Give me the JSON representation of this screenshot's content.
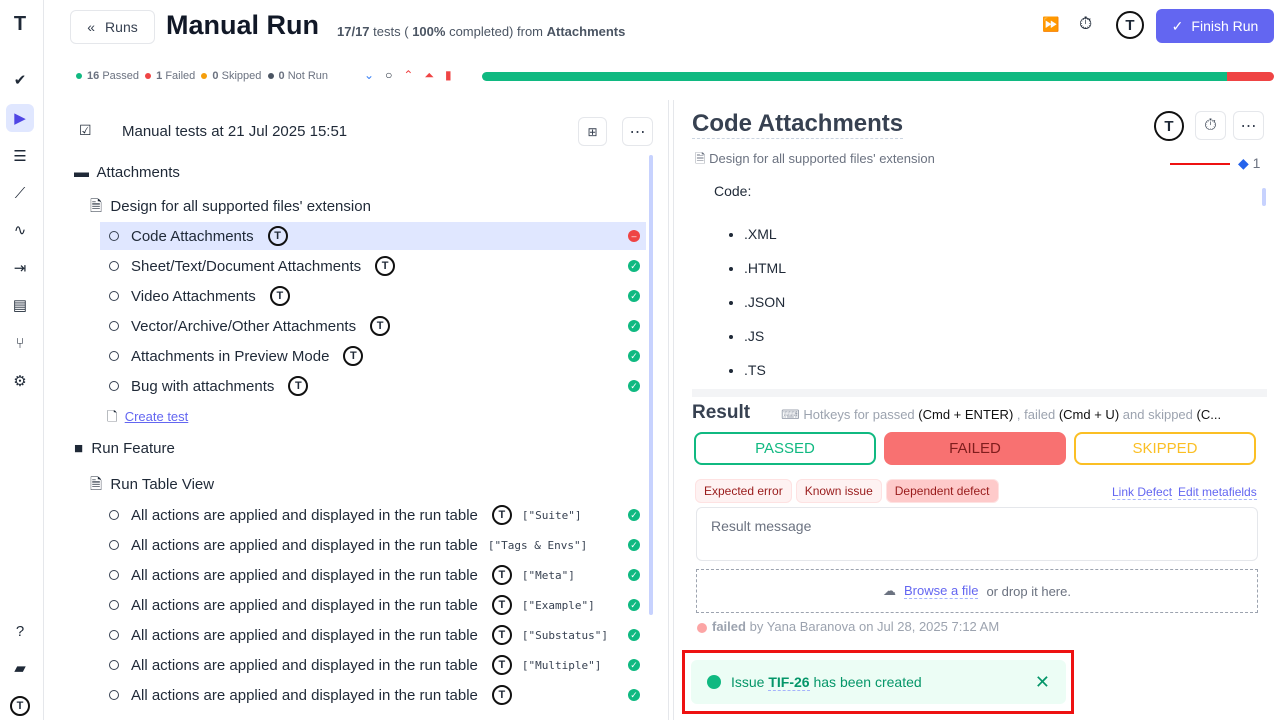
{
  "header": {
    "back_label": "Runs",
    "title": "Manual Run",
    "count": "17/17",
    "tests_word": "tests (",
    "percent": "100%",
    "completed_from": "completed) from",
    "source": "Attachments",
    "finish_label": "Finish Run"
  },
  "stats": {
    "passed": "16",
    "passed_label": "Passed",
    "failed": "1",
    "failed_label": "Failed",
    "skipped": "0",
    "skipped_label": "Skipped",
    "notrun": "0",
    "notrun_label": "Not Run",
    "progress_passed_fraction": 0.9412,
    "progress_failed_fraction": 0.0588,
    "colors": {
      "passed": "#10b981",
      "failed": "#ef4444",
      "skipped": "#f59e0b",
      "notrun": "#4b5563"
    }
  },
  "tree": {
    "title": "Manual tests at 21 Jul 2025 15:51",
    "suite1": "Attachments",
    "case1": "Design for all supported files' extension",
    "tests1": [
      {
        "name": "Code Attachments",
        "status": "failed"
      },
      {
        "name": "Sheet/Text/Document Attachments",
        "status": "passed"
      },
      {
        "name": "Video Attachments",
        "status": "passed"
      },
      {
        "name": "Vector/Archive/Other Attachments",
        "status": "passed"
      },
      {
        "name": "Attachments in Preview Mode",
        "status": "passed"
      },
      {
        "name": "Bug with attachments",
        "status": "passed"
      }
    ],
    "create_test": "Create test",
    "suite2": "Run Feature",
    "case2": "Run Table View",
    "tests2": [
      {
        "name": "All actions are applied and displayed in the run table",
        "tag": "[\"Suite\"]"
      },
      {
        "name": "All actions are applied and displayed in the run table",
        "tag": "[\"Tags & Envs\"]"
      },
      {
        "name": "All actions are applied and displayed in the run table",
        "tag": "[\"Meta\"]"
      },
      {
        "name": "All actions are applied and displayed in the run table",
        "tag": "[\"Example\"]"
      },
      {
        "name": "All actions are applied and displayed in the run table",
        "tag": "[\"Substatus\"]"
      },
      {
        "name": "All actions are applied and displayed in the run table",
        "tag": "[\"Multiple\"]"
      },
      {
        "name": "All actions are applied and displayed in the run table",
        "tag": ""
      }
    ]
  },
  "detail": {
    "title": "Code Attachments",
    "breadcrumb": "Design for all supported files' extension",
    "jira_count": "1",
    "code_label": "Code:",
    "extensions": [
      ".XML",
      ".HTML",
      ".JSON",
      ".JS",
      ".TS"
    ]
  },
  "result": {
    "heading": "Result",
    "hotkeys_prefix": "Hotkeys for passed",
    "hk_pass": "(Cmd + ENTER)",
    "hk_mid": ", failed",
    "hk_fail": "(Cmd + U)",
    "hk_and": "and skipped",
    "hk_skip": "(C...",
    "passed": "PASSED",
    "failed": "FAILED",
    "skipped": "SKIPPED",
    "pills": [
      "Expected error",
      "Known issue",
      "Dependent defect"
    ],
    "link_defect": "Link Defect",
    "edit_meta": "Edit metafields",
    "message_placeholder": "Result message",
    "browse": "Browse a file",
    "drop": "or drop it here.",
    "history_status": "failed",
    "history_text": "by Yana Baranova on Jul 28, 2025 7:12 AM"
  },
  "toast": {
    "prefix": "Issue",
    "issue": "TIF-26",
    "suffix": "has been created"
  }
}
